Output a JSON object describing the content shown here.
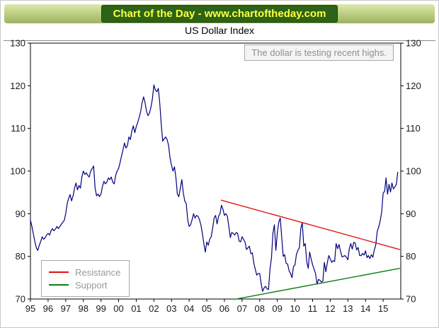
{
  "banner": {
    "text": "Chart of the Day - www.chartoftheday.com"
  },
  "title": "US Dollar Index",
  "annotation": "The dollar is testing recent highs.",
  "legend": [
    {
      "label": "Resistance",
      "color": "#e31212"
    },
    {
      "label": "Support",
      "color": "#0b7d12"
    }
  ],
  "colors": {
    "series": "#00007e",
    "axis": "#000000",
    "banner_bg": "#2d6317",
    "banner_text": "#ffff3d"
  },
  "chart_data": {
    "type": "line",
    "title": "US Dollar Index",
    "xlabel": "",
    "ylabel": "",
    "xlim": [
      1995,
      2016
    ],
    "ylim": [
      70,
      130
    ],
    "grid": false,
    "legend_position": "lower-left",
    "y_ticks": [
      70,
      80,
      90,
      100,
      110,
      120,
      130
    ],
    "x_tick_years": [
      1995,
      1996,
      1997,
      1998,
      1999,
      2000,
      2001,
      2002,
      2003,
      2004,
      2005,
      2006,
      2007,
      2008,
      2009,
      2010,
      2011,
      2012,
      2013,
      2014,
      2015
    ],
    "x_tick_labels": [
      "95",
      "96",
      "97",
      "98",
      "99",
      "00",
      "01",
      "02",
      "03",
      "04",
      "05",
      "06",
      "07",
      "08",
      "09",
      "10",
      "11",
      "12",
      "13",
      "14",
      "15"
    ],
    "points_per_year": 12,
    "x_start": 1995.0,
    "series": [
      {
        "name": "US Dollar Index",
        "color": "#00007e",
        "values": [
          88.5,
          87.0,
          85.2,
          83.5,
          82.0,
          81.4,
          82.6,
          83.5,
          84.6,
          84.0,
          84.4,
          85.0,
          85.4,
          85.0,
          86.0,
          86.5,
          86.0,
          86.4,
          87.0,
          86.5,
          87.0,
          87.5,
          88.0,
          88.4,
          90.0,
          92.4,
          93.6,
          94.5,
          93.0,
          94.2,
          96.0,
          97.2,
          95.6,
          96.6,
          96.0,
          98.6,
          100.0,
          99.2,
          99.6,
          99.0,
          98.6,
          100.0,
          100.6,
          101.2,
          96.0,
          94.2,
          94.6,
          94.0,
          94.6,
          96.4,
          97.6,
          97.0,
          97.4,
          98.4,
          98.0,
          98.6,
          97.4,
          97.0,
          99.0,
          100.0,
          100.6,
          102.0,
          103.6,
          105.0,
          106.6,
          105.4,
          106.0,
          108.0,
          107.4,
          109.4,
          110.6,
          109.0,
          110.4,
          111.4,
          112.6,
          114.0,
          116.0,
          117.4,
          116.0,
          114.0,
          113.0,
          113.6,
          115.0,
          117.0,
          120.2,
          119.0,
          118.6,
          119.4,
          116.0,
          111.0,
          107.0,
          107.6,
          108.0,
          107.4,
          106.0,
          103.0,
          101.4,
          100.0,
          101.0,
          98.4,
          94.6,
          94.0,
          96.0,
          98.0,
          95.0,
          93.0,
          92.4,
          88.6,
          87.0,
          87.4,
          88.6,
          90.0,
          89.0,
          89.6,
          89.4,
          88.6,
          87.4,
          85.4,
          83.0,
          81.0,
          83.4,
          82.6,
          84.0,
          84.6,
          86.6,
          89.0,
          89.6,
          87.6,
          89.4,
          90.0,
          92.0,
          91.0,
          89.6,
          90.0,
          89.4,
          87.0,
          84.4,
          85.6,
          85.4,
          85.0,
          85.6,
          85.4,
          83.6,
          83.4,
          84.6,
          84.0,
          83.4,
          81.6,
          82.0,
          82.4,
          80.6,
          80.8,
          78.4,
          77.0,
          75.6,
          76.0,
          76.0,
          73.6,
          71.8,
          72.6,
          73.0,
          72.4,
          72.2,
          77.0,
          79.6,
          85.4,
          87.4,
          81.4,
          85.6,
          88.0,
          89.0,
          84.4,
          80.0,
          80.4,
          78.4,
          78.2,
          76.6,
          76.0,
          75.0,
          77.6,
          78.0,
          80.4,
          81.4,
          82.0,
          86.6,
          87.9,
          82.4,
          83.0,
          78.8,
          77.2,
          81.0,
          79.4,
          78.0,
          77.0,
          76.0,
          73.5,
          74.6,
          74.4,
          74.0,
          74.2,
          78.6,
          76.4,
          78.4,
          80.2,
          79.4,
          78.6,
          79.0,
          78.8,
          83.0,
          81.8,
          82.8,
          81.2,
          79.9,
          80.0,
          80.2,
          79.8,
          79.2,
          81.9,
          83.0,
          81.7,
          83.3,
          83.1,
          81.5,
          82.1,
          80.2,
          80.2,
          80.7,
          80.3,
          81.3,
          79.7,
          80.2,
          79.5,
          80.4,
          79.8,
          81.5,
          82.7,
          85.9,
          86.9,
          88.3,
          90.3,
          94.8,
          95.3,
          98.4,
          94.6,
          96.9,
          95.1,
          97.2,
          95.8,
          96.3,
          96.9,
          99.8
        ]
      }
    ],
    "trendlines": [
      {
        "name": "Resistance",
        "color": "#e31212",
        "x": [
          2005.8,
          2015.95
        ],
        "y": [
          93.2,
          81.6
        ]
      },
      {
        "name": "Support",
        "color": "#0b7d12",
        "x": [
          2006.55,
          2015.95
        ],
        "y": [
          69.9,
          77.2
        ]
      }
    ]
  }
}
